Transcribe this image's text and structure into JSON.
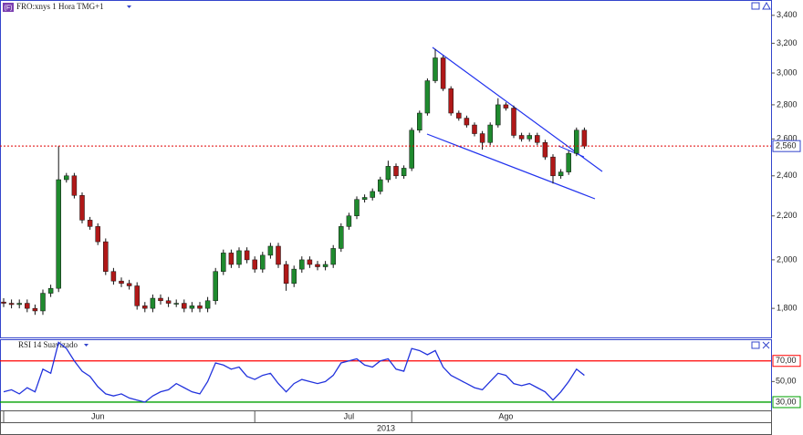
{
  "chart_data": [
    {
      "type": "candlestick",
      "title": "FRO:xnys 1 Hora TMG+1",
      "badge": "(F)",
      "x_label": "2013",
      "log_scale": true,
      "ylim": [
        1690,
        3515
      ],
      "yticks": [
        {
          "value": 1800,
          "label": "1,800"
        },
        {
          "value": 2000,
          "label": "2,000"
        },
        {
          "value": 2200,
          "label": "2,200"
        },
        {
          "value": 2400,
          "label": "2,400"
        },
        {
          "value": 2600,
          "label": "2,600"
        },
        {
          "value": 2800,
          "label": "2,800"
        },
        {
          "value": 3000,
          "label": "3,000"
        },
        {
          "value": 3200,
          "label": "3,200"
        },
        {
          "value": 3400,
          "label": "3,400"
        }
      ],
      "last_price": {
        "value": 2560,
        "label": "2,560"
      },
      "last_price_color": "#e00000",
      "up_color": "#1f8a2e",
      "down_color": "#b01818",
      "categories": [
        null,
        null,
        null,
        null,
        null,
        null,
        null,
        null,
        null,
        null,
        null,
        null,
        "Jun",
        null,
        null,
        null,
        null,
        null,
        null,
        null,
        null,
        null,
        null,
        null,
        null,
        null,
        null,
        null,
        null,
        null,
        null,
        null,
        null,
        null,
        null,
        null,
        null,
        null,
        null,
        null,
        null,
        null,
        null,
        null,
        "Jul",
        null,
        null,
        null,
        null,
        null,
        null,
        null,
        null,
        null,
        null,
        null,
        null,
        null,
        null,
        null,
        null,
        null,
        null,
        null,
        "Ago",
        null,
        null,
        null,
        null,
        null,
        null,
        null,
        null,
        null,
        null
      ],
      "open": [
        1825,
        1820,
        1815,
        1820,
        1800,
        1790,
        1860,
        1880,
        2380,
        2400,
        2300,
        2180,
        2150,
        2080,
        1950,
        1910,
        1900,
        1890,
        1810,
        1800,
        1840,
        1830,
        1820,
        1820,
        1800,
        1810,
        1800,
        1830,
        1950,
        2030,
        1980,
        2040,
        2000,
        1960,
        2020,
        2060,
        1980,
        1900,
        1960,
        2000,
        1980,
        1970,
        1980,
        2050,
        2150,
        2200,
        2280,
        2290,
        2320,
        2380,
        2450,
        2400,
        2440,
        2650,
        2750,
        2950,
        3100,
        2900,
        2750,
        2720,
        2680,
        2630,
        2580,
        2680,
        2800,
        2780,
        2620,
        2600,
        2620,
        2580,
        2500,
        2400,
        2420,
        2520,
        2650
      ],
      "high": [
        1840,
        1835,
        1835,
        1835,
        1815,
        1875,
        1895,
        2560,
        2415,
        2415,
        2315,
        2195,
        2165,
        2095,
        1965,
        1925,
        1915,
        1905,
        1825,
        1855,
        1855,
        1845,
        1835,
        1835,
        1825,
        1825,
        1845,
        1965,
        2045,
        2045,
        2055,
        2055,
        2015,
        2035,
        2075,
        2075,
        1995,
        1975,
        2015,
        2015,
        1995,
        1995,
        2065,
        2165,
        2215,
        2295,
        2305,
        2335,
        2395,
        2480,
        2465,
        2455,
        2665,
        2765,
        2965,
        3160,
        3115,
        2915,
        2765,
        2735,
        2695,
        2645,
        2695,
        2840,
        2815,
        2795,
        2635,
        2635,
        2635,
        2595,
        2515,
        2435,
        2535,
        2665,
        2665
      ],
      "low": [
        1805,
        1800,
        1800,
        1785,
        1775,
        1775,
        1845,
        1865,
        2365,
        2285,
        2165,
        2135,
        2065,
        1935,
        1895,
        1885,
        1875,
        1795,
        1785,
        1785,
        1815,
        1805,
        1805,
        1785,
        1785,
        1785,
        1785,
        1815,
        1935,
        1965,
        1965,
        1985,
        1945,
        1945,
        2005,
        1965,
        1870,
        1885,
        1945,
        1965,
        1955,
        1955,
        1965,
        2035,
        2135,
        2185,
        2265,
        2275,
        2305,
        2365,
        2385,
        2385,
        2425,
        2635,
        2735,
        2935,
        2885,
        2735,
        2705,
        2665,
        2615,
        2540,
        2565,
        2665,
        2765,
        2605,
        2585,
        2585,
        2565,
        2485,
        2360,
        2385,
        2405,
        2505,
        2545
      ],
      "close": [
        1820,
        1815,
        1820,
        1800,
        1790,
        1860,
        1880,
        2380,
        2400,
        2300,
        2180,
        2150,
        2080,
        1950,
        1910,
        1900,
        1890,
        1810,
        1800,
        1840,
        1830,
        1820,
        1820,
        1800,
        1810,
        1800,
        1830,
        1950,
        2030,
        1980,
        2040,
        2000,
        1960,
        2020,
        2060,
        1980,
        1900,
        1960,
        2000,
        1980,
        1970,
        1980,
        2050,
        2150,
        2200,
        2280,
        2290,
        2320,
        2380,
        2450,
        2400,
        2440,
        2650,
        2750,
        2950,
        3100,
        2900,
        2750,
        2720,
        2680,
        2630,
        2580,
        2680,
        2800,
        2780,
        2620,
        2600,
        2620,
        2580,
        2500,
        2400,
        2420,
        2520,
        2650,
        2560
      ]
    },
    {
      "type": "line",
      "title": "RSI 14 Suavizado",
      "color": "#2233dd",
      "ylim": [
        22,
        91
      ],
      "yticks": [
        {
          "value": 70,
          "label": "70,00"
        },
        {
          "value": 50,
          "label": "50,00"
        },
        {
          "value": 30,
          "label": "30,00"
        }
      ],
      "tick_colors": [
        "#ff0000",
        null,
        "#00a000"
      ],
      "values": [
        40,
        42,
        38,
        44,
        40,
        62,
        58,
        88,
        82,
        70,
        60,
        55,
        45,
        38,
        36,
        38,
        34,
        32,
        30,
        36,
        40,
        42,
        48,
        44,
        40,
        38,
        50,
        68,
        66,
        62,
        64,
        55,
        52,
        56,
        58,
        48,
        40,
        48,
        52,
        50,
        48,
        50,
        56,
        68,
        70,
        72,
        66,
        64,
        70,
        72,
        62,
        60,
        82,
        80,
        76,
        80,
        64,
        56,
        52,
        48,
        44,
        42,
        50,
        58,
        56,
        48,
        46,
        48,
        44,
        40,
        32,
        40,
        50,
        62,
        56
      ]
    }
  ]
}
